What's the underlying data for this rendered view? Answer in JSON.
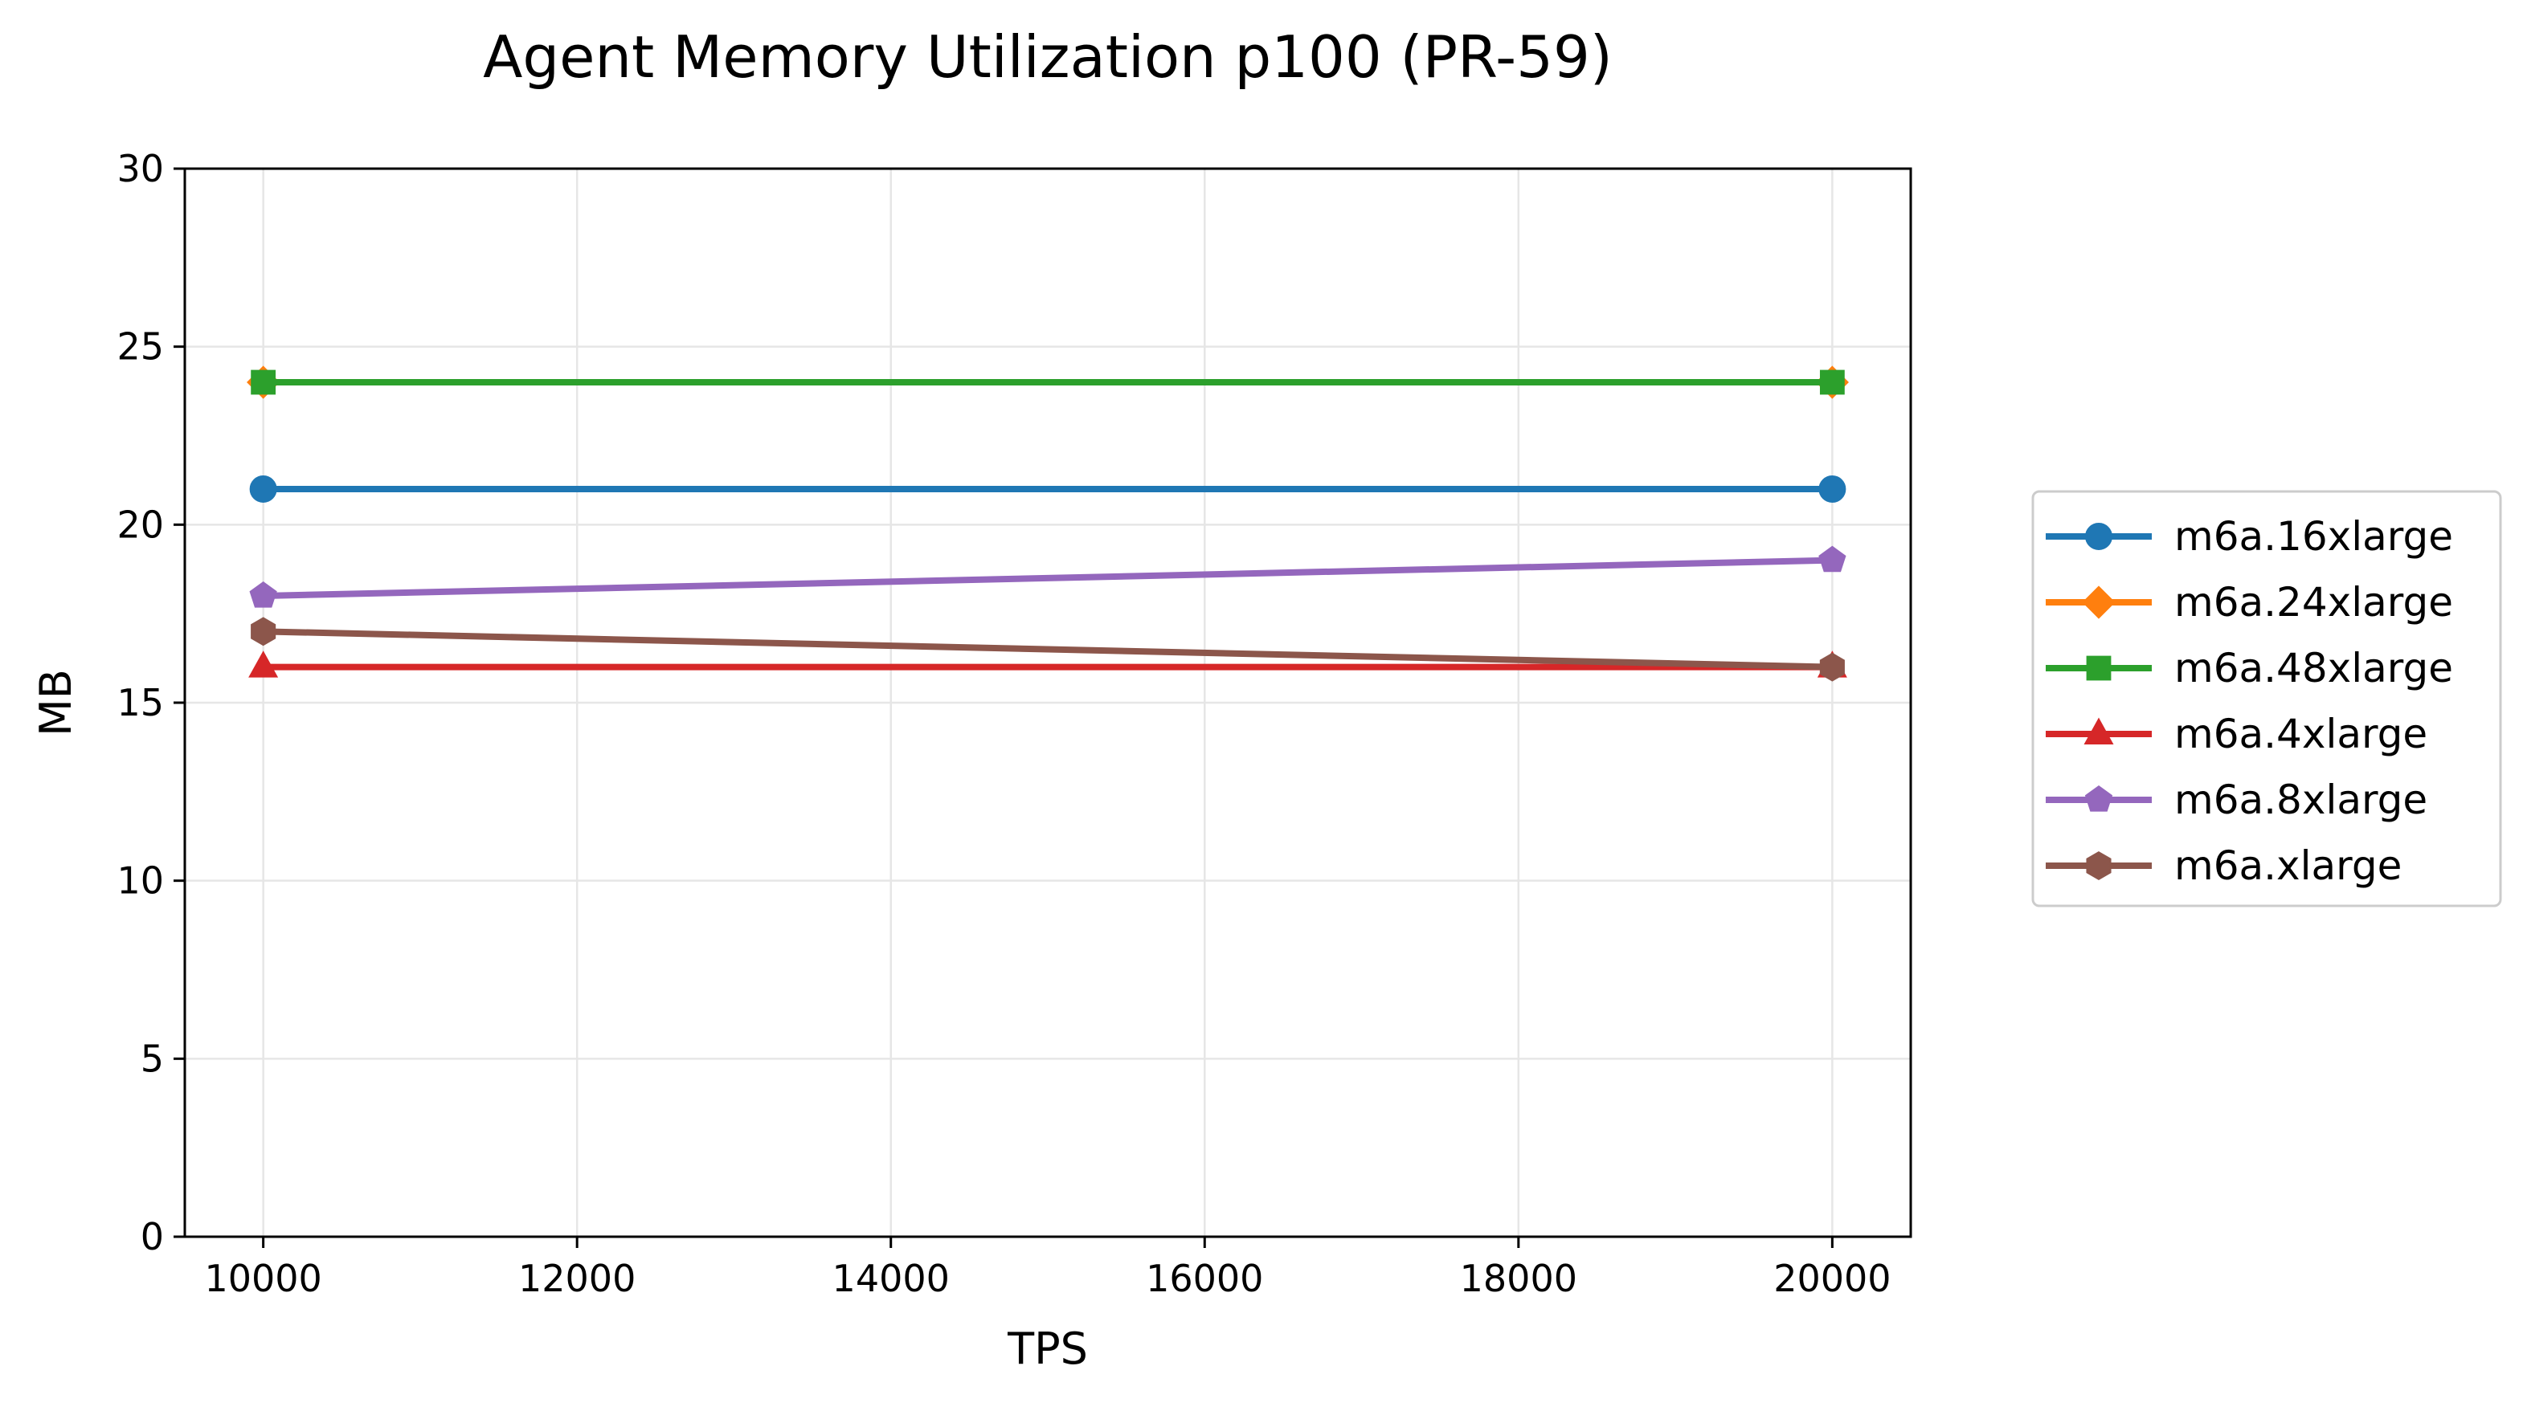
{
  "chart_data": {
    "type": "line",
    "title": "Agent Memory Utilization p100 (PR-59)",
    "xlabel": "TPS",
    "ylabel": "MB",
    "xlim": [
      9500,
      20500
    ],
    "ylim": [
      0,
      30
    ],
    "xticks": [
      10000,
      12000,
      14000,
      16000,
      18000,
      20000
    ],
    "yticks": [
      0,
      5,
      10,
      15,
      20,
      25,
      30
    ],
    "grid": true,
    "legend_position": "right-outside",
    "x": [
      10000,
      20000
    ],
    "series": [
      {
        "name": "m6a.16xlarge",
        "values": [
          21,
          21
        ],
        "color": "#1f77b4",
        "marker": "circle"
      },
      {
        "name": "m6a.24xlarge",
        "values": [
          24,
          24
        ],
        "color": "#ff7f0e",
        "marker": "diamond"
      },
      {
        "name": "m6a.48xlarge",
        "values": [
          24,
          24
        ],
        "color": "#2ca02c",
        "marker": "square"
      },
      {
        "name": "m6a.4xlarge",
        "values": [
          16,
          16
        ],
        "color": "#d62728",
        "marker": "triangle"
      },
      {
        "name": "m6a.8xlarge",
        "values": [
          18,
          19
        ],
        "color": "#9467bd",
        "marker": "pentagon"
      },
      {
        "name": "m6a.xlarge",
        "values": [
          17,
          16
        ],
        "color": "#8c564b",
        "marker": "hexagon"
      }
    ]
  }
}
